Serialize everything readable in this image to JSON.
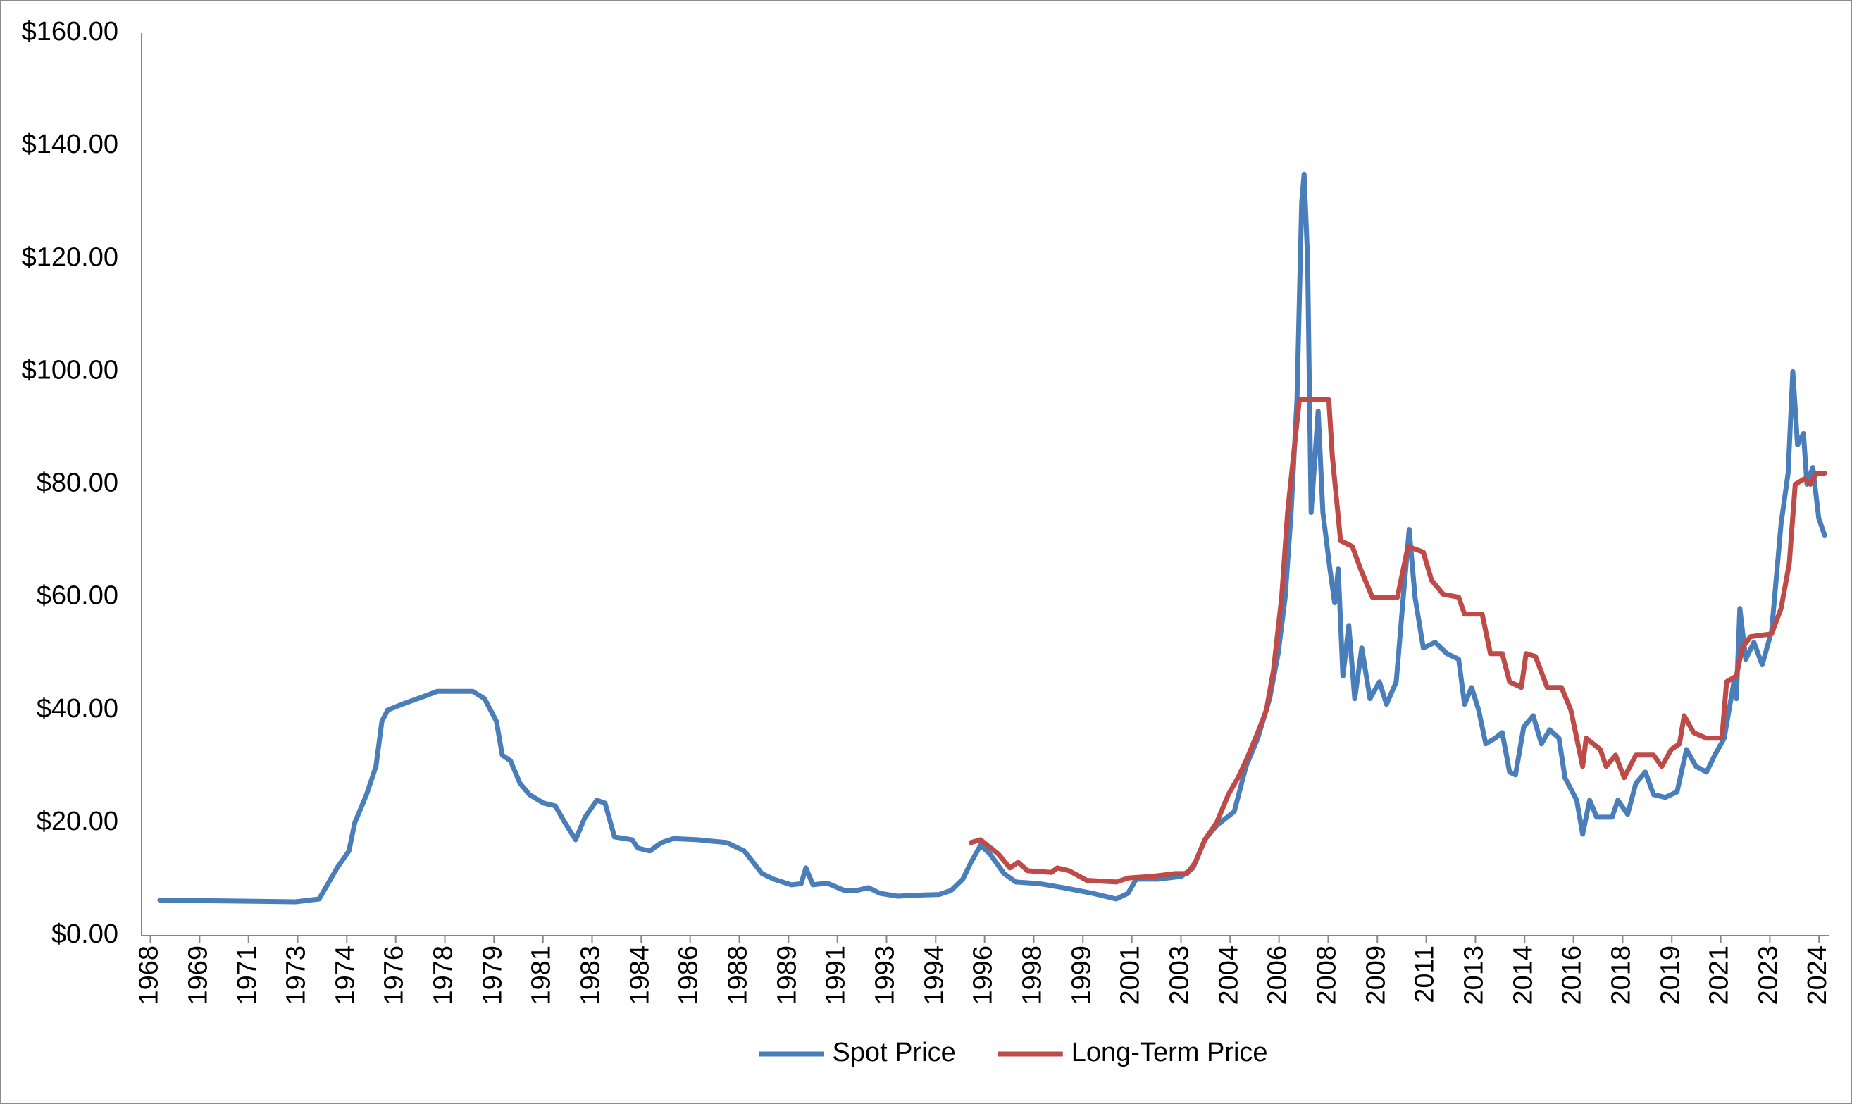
{
  "chart_data": {
    "type": "line",
    "xlim": [
      1967.7,
      2025
    ],
    "xticks": [
      {
        "value": 1968,
        "label": "1968"
      },
      {
        "value": 1969.67,
        "label": "1969"
      },
      {
        "value": 1971.33,
        "label": "1971"
      },
      {
        "value": 1973,
        "label": "1973"
      },
      {
        "value": 1974.67,
        "label": "1974"
      },
      {
        "value": 1976.33,
        "label": "1976"
      },
      {
        "value": 1978,
        "label": "1978"
      },
      {
        "value": 1979.67,
        "label": "1979"
      },
      {
        "value": 1981.33,
        "label": "1981"
      },
      {
        "value": 1983,
        "label": "1983"
      },
      {
        "value": 1984.67,
        "label": "1984"
      },
      {
        "value": 1986.33,
        "label": "1986"
      },
      {
        "value": 1988,
        "label": "1988"
      },
      {
        "value": 1989.67,
        "label": "1989"
      },
      {
        "value": 1991.33,
        "label": "1991"
      },
      {
        "value": 1993,
        "label": "1993"
      },
      {
        "value": 1994.67,
        "label": "1994"
      },
      {
        "value": 1996.33,
        "label": "1996"
      },
      {
        "value": 1998,
        "label": "1998"
      },
      {
        "value": 1999.67,
        "label": "1999"
      },
      {
        "value": 2001.33,
        "label": "2001"
      },
      {
        "value": 2003,
        "label": "2003"
      },
      {
        "value": 2004.67,
        "label": "2004"
      },
      {
        "value": 2006.33,
        "label": "2006"
      },
      {
        "value": 2008,
        "label": "2008"
      },
      {
        "value": 2009.67,
        "label": "2009"
      },
      {
        "value": 2011.33,
        "label": "2011"
      },
      {
        "value": 2013,
        "label": "2013"
      },
      {
        "value": 2014.67,
        "label": "2014"
      },
      {
        "value": 2016.33,
        "label": "2016"
      },
      {
        "value": 2018,
        "label": "2018"
      },
      {
        "value": 2019.67,
        "label": "2019"
      },
      {
        "value": 2021.33,
        "label": "2021"
      },
      {
        "value": 2023,
        "label": "2023"
      },
      {
        "value": 2024.67,
        "label": "2024"
      }
    ],
    "ylim": [
      0,
      160
    ],
    "yticks": [
      {
        "value": 0,
        "label": "$0.00"
      },
      {
        "value": 20,
        "label": "$20.00"
      },
      {
        "value": 40,
        "label": "$40.00"
      },
      {
        "value": 60,
        "label": "$60.00"
      },
      {
        "value": 80,
        "label": "$80.00"
      },
      {
        "value": 100,
        "label": "$100.00"
      },
      {
        "value": 120,
        "label": "$120.00"
      },
      {
        "value": 140,
        "label": "$140.00"
      },
      {
        "value": 160,
        "label": "$160.00"
      }
    ],
    "grid": false,
    "legend": "bottom",
    "series": [
      {
        "name": "Spot Price",
        "color": "#4a7ebb",
        "x": [
          1968.32,
          1972.93,
          1973.73,
          1974.34,
          1974.74,
          1974.94,
          1975.34,
          1975.66,
          1975.86,
          1976.06,
          1976.54,
          1977.34,
          1977.74,
          1978.95,
          1979.35,
          1979.75,
          1979.95,
          1980.23,
          1980.55,
          1980.87,
          1981.35,
          1981.75,
          1982.08,
          1982.44,
          1982.76,
          1983.16,
          1983.44,
          1983.76,
          1984.36,
          1984.56,
          1984.96,
          1985.36,
          1985.76,
          1986.57,
          1986.97,
          1987.57,
          1988.17,
          1988.77,
          1989.17,
          1989.77,
          1990.1,
          1990.26,
          1990.5,
          1990.98,
          1991.58,
          1991.98,
          1992.38,
          1992.78,
          1993.38,
          1994.19,
          1994.79,
          1995.19,
          1995.59,
          1995.87,
          1996.19,
          1996.51,
          1996.99,
          1997.39,
          1998.2,
          1999.0,
          2000.0,
          2000.8,
          2001.2,
          2001.48,
          2002.21,
          2003.01,
          2003.41,
          2003.81,
          2004.21,
          2004.81,
          2005.21,
          2005.61,
          2006.01,
          2006.3,
          2006.54,
          2006.74,
          2006.94,
          2007.1,
          2007.18,
          2007.3,
          2007.42,
          2007.66,
          2007.82,
          2008.06,
          2008.22,
          2008.34,
          2008.5,
          2008.7,
          2008.9,
          2009.14,
          2009.42,
          2009.74,
          2009.98,
          2010.31,
          2010.55,
          2010.75,
          2010.95,
          2011.23,
          2011.63,
          2012.03,
          2012.43,
          2012.63,
          2012.87,
          2013.11,
          2013.35,
          2013.67,
          2013.91,
          2014.16,
          2014.36,
          2014.64,
          2014.96,
          2015.24,
          2015.52,
          2015.84,
          2016.04,
          2016.44,
          2016.64,
          2016.88,
          2017.12,
          2017.64,
          2017.84,
          2018.17,
          2018.45,
          2018.77,
          2019.05,
          2019.45,
          2019.85,
          2020.17,
          2020.49,
          2020.85,
          2021.13,
          2021.45,
          2021.78,
          2021.86,
          2021.98,
          2022.18,
          2022.46,
          2022.74,
          2023.06,
          2023.38,
          2023.62,
          2023.78,
          2023.94,
          2024.14,
          2024.26,
          2024.46,
          2024.66,
          2024.86
        ],
        "values": [
          6.3,
          6.0,
          6.5,
          12,
          15,
          20,
          25,
          30,
          38,
          40,
          41,
          42.5,
          43.3,
          43.3,
          42,
          38,
          32,
          31,
          27,
          25,
          23.5,
          23,
          20,
          17,
          21,
          24,
          23.5,
          17.5,
          17,
          15.5,
          15,
          16.5,
          17.2,
          17,
          16.8,
          16.5,
          15,
          11,
          10,
          9,
          9.2,
          12,
          9,
          9.3,
          8,
          8,
          8.5,
          7.5,
          7,
          7.2,
          7.3,
          8,
          10,
          13,
          16,
          14.5,
          11,
          9.5,
          9.2,
          8.5,
          7.5,
          6.5,
          7.5,
          10,
          10,
          10.5,
          12,
          17,
          19.5,
          22,
          30,
          35,
          42,
          50,
          60,
          75,
          95,
          130,
          135,
          120,
          75,
          93,
          75,
          65,
          59,
          65,
          46,
          55,
          42,
          51,
          42,
          45,
          41,
          45,
          60,
          72,
          60,
          51,
          52,
          50,
          49,
          41,
          44,
          40,
          34,
          35,
          36,
          29,
          28.5,
          37,
          39,
          34,
          36.5,
          35,
          28,
          24,
          18,
          24,
          21,
          21,
          24,
          21.5,
          27,
          29,
          25,
          24.5,
          25.5,
          33,
          30,
          29,
          32,
          35,
          45,
          42,
          58,
          49,
          52,
          48,
          54,
          73,
          82,
          100,
          87,
          89,
          80,
          83,
          74,
          71
        ]
      },
      {
        "name": "Long-Term Price",
        "color": "#be4b48",
        "x": [
          1995.87,
          1996.19,
          1996.79,
          1997.19,
          1997.47,
          1997.79,
          1998.6,
          1998.8,
          1999.2,
          1999.8,
          2000.8,
          2001.2,
          2002.01,
          2002.81,
          2003.21,
          2003.49,
          2003.81,
          2004.21,
          2004.61,
          2004.94,
          2005.21,
          2005.61,
          2005.9,
          2006.14,
          2006.42,
          2006.62,
          2006.82,
          2007.02,
          2008.02,
          2008.14,
          2008.42,
          2008.82,
          2009.1,
          2009.5,
          2010.35,
          2010.71,
          2011.23,
          2011.51,
          2011.91,
          2012.43,
          2012.63,
          2013.23,
          2013.51,
          2013.91,
          2014.16,
          2014.56,
          2014.72,
          2015.04,
          2015.44,
          2015.92,
          2016.24,
          2016.64,
          2016.76,
          2017.24,
          2017.44,
          2017.76,
          2018.05,
          2018.45,
          2019.05,
          2019.33,
          2019.65,
          2019.93,
          2020.09,
          2020.41,
          2020.85,
          2021.37,
          2021.53,
          2021.86,
          2022.06,
          2022.34,
          2023.06,
          2023.38,
          2023.66,
          2023.86,
          2024.18,
          2024.38,
          2024.58,
          2024.86
        ],
        "values": [
          16.5,
          17,
          14.5,
          12,
          13,
          11.5,
          11.2,
          12,
          11.5,
          9.8,
          9.5,
          10.2,
          10.5,
          11,
          11,
          13,
          17,
          20,
          25,
          28,
          31,
          36,
          40,
          47,
          60,
          75,
          85,
          95,
          95,
          85,
          70,
          69,
          65,
          60,
          60,
          69,
          68,
          63,
          60.5,
          60,
          57,
          57,
          50,
          50,
          45,
          44,
          50,
          49.5,
          44,
          44,
          40,
          30,
          35,
          33,
          30,
          32,
          28,
          32,
          32,
          30,
          33,
          34,
          39,
          36,
          35,
          35,
          45,
          46,
          51,
          53,
          53.5,
          58,
          66,
          80,
          81,
          80,
          82,
          82
        ]
      }
    ]
  }
}
